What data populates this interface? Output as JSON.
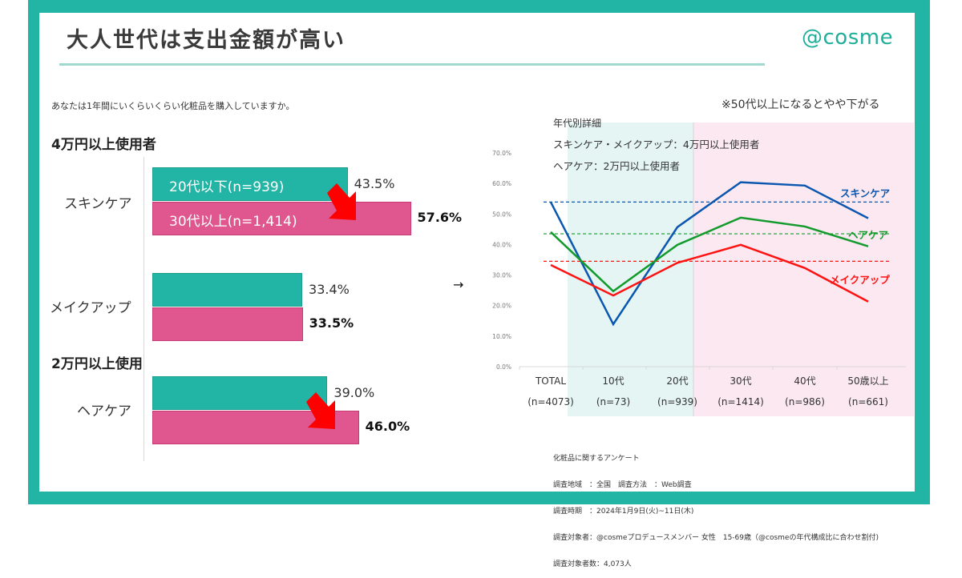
{
  "header": {
    "title": "大人世代は支出金額が高い",
    "logo": "@cosme"
  },
  "question": "あなたは1年間にいくらいくらい化粧品を購入していますか。",
  "left_chart": {
    "section1_heading": "4万円以上使用者",
    "section2_heading": "2万円以上使用",
    "legend": {
      "young": "20代以下(n=939)",
      "older": "30代以上(n=1,414)"
    },
    "colors": {
      "young": "#22b5a6",
      "older": "#e0568f",
      "arrow": "#ff0000"
    },
    "categories": [
      {
        "label": "スキンケア",
        "young": 43.5,
        "older": 57.6,
        "young_label": "43.5%",
        "older_label": "57.6%"
      },
      {
        "label": "メイクアップ",
        "young": 33.4,
        "older": 33.5,
        "young_label": "33.4%",
        "older_label": "33.5%"
      },
      {
        "label": "ヘアケア",
        "young": 39.0,
        "older": 46.0,
        "young_label": "39.0%",
        "older_label": "46.0%"
      }
    ],
    "connector_arrow": "→"
  },
  "note_top": "※50代以上になるとやや下がる",
  "chart_data": {
    "type": "line",
    "title": "年代別詳細",
    "subtitle_lines": [
      "スキンケア・メイクアップ：4万円以上使用者",
      "ヘアケア：2万円以上使用者"
    ],
    "categories": [
      "TOTAL",
      "10代",
      "20代",
      "30代",
      "40代",
      "50歳以上"
    ],
    "category_n": [
      "(n=4073)",
      "(n=73)",
      "(n=939)",
      "(n=1414)",
      "(n=986)",
      "(n=661)"
    ],
    "ylim": [
      0,
      70
    ],
    "yticks": [
      "0.0%",
      "10.0%",
      "20.0%",
      "30.0%",
      "40.0%",
      "50.0%",
      "60.0%",
      "70.0%"
    ],
    "ytick_values": [
      0,
      10,
      20,
      30,
      40,
      50,
      60,
      70
    ],
    "xlabel": "",
    "ylabel": "",
    "grid": false,
    "shaded_regions": [
      {
        "from": "10代",
        "to": "20代",
        "color": "#e4f5f3"
      },
      {
        "from": "30代",
        "to": "50歳以上",
        "color": "#fbe8f0"
      }
    ],
    "series": [
      {
        "name": "スキンケア",
        "color": "#0b57b0",
        "values": [
          53.9,
          13.9,
          45.7,
          60.4,
          59.3,
          48.6
        ],
        "reference": 53.9
      },
      {
        "name": "ヘアケア",
        "color": "#139a2c",
        "values": [
          44.1,
          24.7,
          39.9,
          48.8,
          45.9,
          39.4
        ],
        "reference": 43.5
      },
      {
        "name": "メイクアップ",
        "color": "#ff1212",
        "values": [
          33.3,
          23.3,
          34.0,
          39.9,
          32.3,
          21.3
        ],
        "reference": 34.5
      }
    ]
  },
  "footnote": {
    "lines": [
      "化粧品に関するアンケート",
      "調査地域　：全国　調査方法　：Web調査",
      "調査時期　：2024年1月9日(火)~11日(木)",
      "調査対象者：@cosmeプロデュースメンバー 女性　15-69歳（@cosmeの年代構成比に合わせ割付)",
      "調査対象者数：4,073人"
    ]
  }
}
